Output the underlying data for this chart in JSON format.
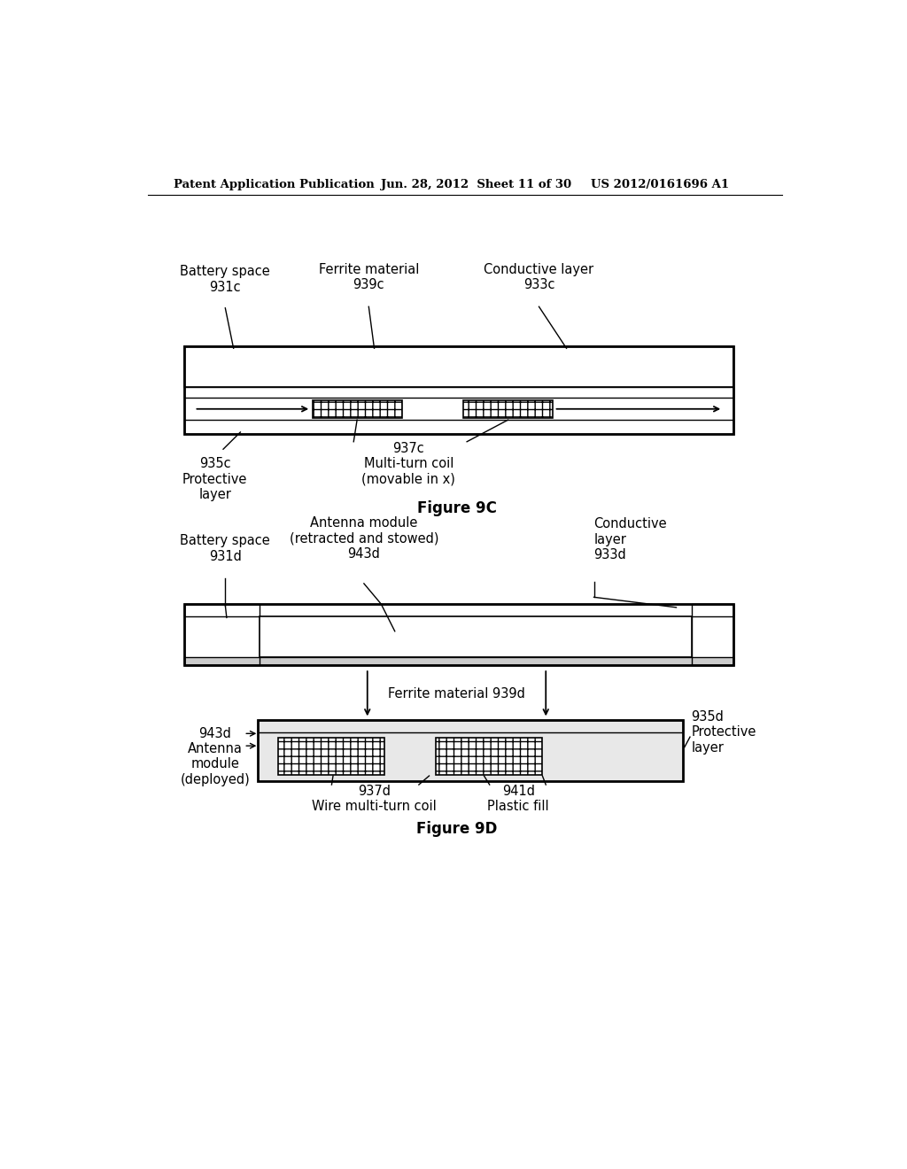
{
  "bg_color": "#ffffff",
  "header_left": "Patent Application Publication",
  "header_mid": "Jun. 28, 2012  Sheet 11 of 30",
  "header_right": "US 2012/0161696 A1",
  "fig9c_title": "Figure 9C",
  "fig9d_title": "Figure 9D",
  "fig9c_labels": {
    "battery_space": "Battery space\n931c",
    "ferrite_material": "Ferrite material\n939c",
    "conductive_layer": "Conductive layer\n933c",
    "protective_layer": "935c\nProtective\nlayer",
    "multi_turn_coil": "937c\nMulti-turn coil\n(movable in x)"
  },
  "fig9d_labels": {
    "battery_space": "Battery space\n931d",
    "antenna_module_stowed": "Antenna module\n(retracted and stowed)\n943d",
    "conductive_layer": "Conductive\nlayer\n933d",
    "ferrite_material": "Ferrite material 939d",
    "antenna_module_deployed": "943d\nAntenna\nmodule\n(deployed)",
    "protective_layer": "935d\nProtective\nlayer",
    "wire_coil": "937d\nWire multi-turn coil",
    "plastic_fill": "941d\nPlastic fill"
  }
}
